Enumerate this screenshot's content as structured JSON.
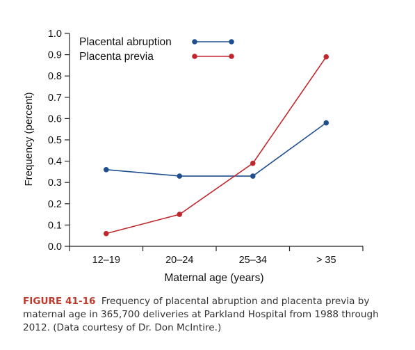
{
  "chart_data": {
    "type": "line",
    "categories": [
      "12–19",
      "20–24",
      "25–34",
      "> 35"
    ],
    "series": [
      {
        "name": "Placental abruption",
        "values": [
          0.36,
          0.33,
          0.33,
          0.58
        ],
        "color": "#1f4f8f"
      },
      {
        "name": "Placenta previa",
        "values": [
          0.06,
          0.15,
          0.39,
          0.89
        ],
        "color": "#c0272d"
      }
    ],
    "xlabel": "Maternal age (years)",
    "ylabel": "Frequency (percent)",
    "ylim": [
      0,
      1.0
    ],
    "yticks": [
      "0.0",
      "0.1",
      "0.2",
      "0.3",
      "0.4",
      "0.5",
      "0.6",
      "0.7",
      "0.8",
      "0.9",
      "1.0"
    ],
    "grid": false,
    "legend": "top-left"
  },
  "caption": {
    "label": "FIGURE 41-16",
    "text": "Frequency of placental abruption and placenta previa by maternal age in 365,700 deliveries at Parkland Hospital from 1988 through 2012. (Data courtesy of Dr. Don McIntire.)"
  }
}
